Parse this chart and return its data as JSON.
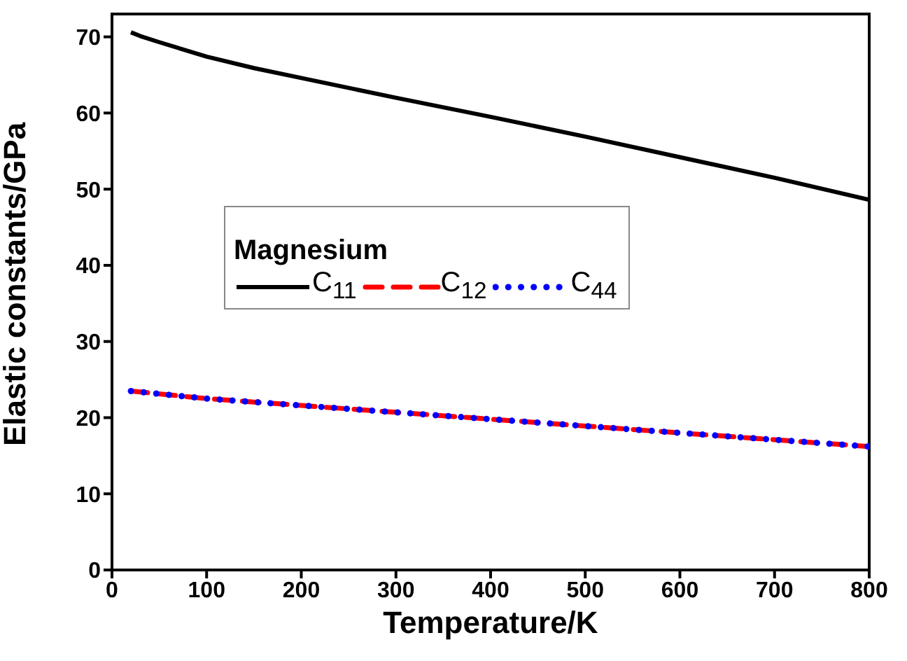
{
  "chart_data": {
    "type": "line",
    "xlabel": "Temperature/K",
    "ylabel": "Elastic constants/GPa",
    "legend_title": "Magnesium",
    "legend": "top left",
    "xlim": [
      0,
      800
    ],
    "xticks": [
      0,
      100,
      200,
      300,
      400,
      500,
      600,
      700,
      800
    ],
    "ylim": [
      0,
      73
    ],
    "yticks": [
      0,
      10,
      20,
      30,
      40,
      50,
      60,
      70
    ],
    "grid": false,
    "marker": "none",
    "series": [
      {
        "name": "C$_{11}$",
        "color": "#000000",
        "line_style": "solid",
        "x": [
          20,
          30,
          50,
          100,
          150,
          200,
          300,
          400,
          500,
          600,
          700,
          800
        ],
        "values": [
          70.6,
          70.1,
          69.3,
          67.4,
          65.9,
          64.6,
          62.0,
          59.5,
          56.9,
          54.2,
          51.5,
          48.6
        ]
      },
      {
        "name": "C$_{12}$",
        "color": "#ff0000",
        "line_style": "dashed",
        "x": [
          20,
          100,
          200,
          300,
          400,
          500,
          600,
          700,
          800
        ],
        "values": [
          23.5,
          22.5,
          21.6,
          20.7,
          19.8,
          18.9,
          18.0,
          17.1,
          16.2
        ]
      },
      {
        "name": "C$_{44}$",
        "color": "#0000ff",
        "line_style": "dotted",
        "x": [
          20,
          100,
          200,
          300,
          400,
          500,
          600,
          700,
          800
        ],
        "values": [
          23.5,
          22.5,
          21.6,
          20.7,
          19.8,
          18.9,
          18.0,
          17.1,
          16.2
        ]
      }
    ]
  }
}
